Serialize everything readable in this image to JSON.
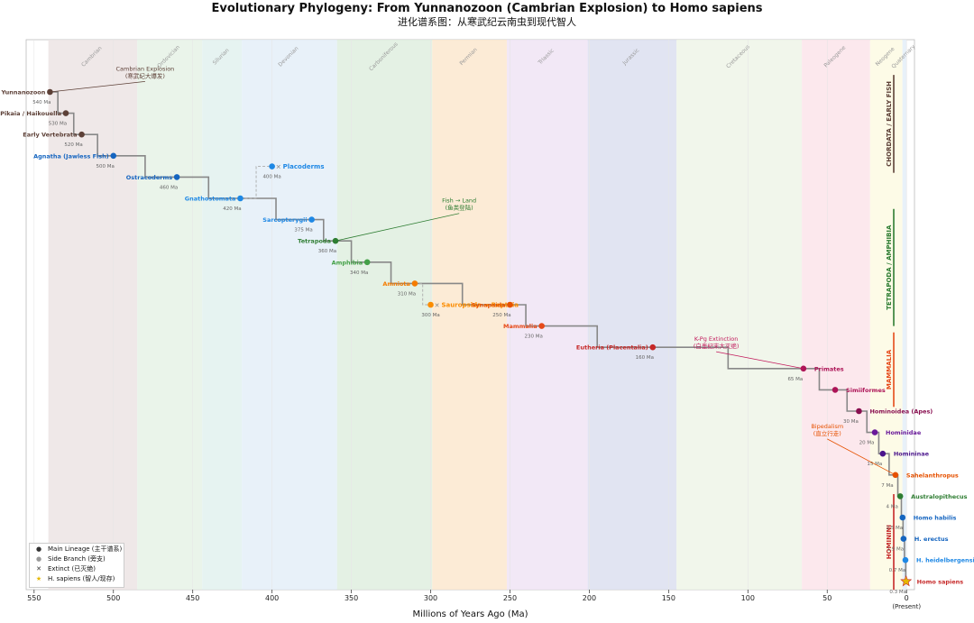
{
  "header": {
    "title": "Evolutionary Phylogeny: From Yunnanozoon (Cambrian Explosion) to Homo sapiens",
    "subtitle": "进化谱系图：从寒武纪云南虫到现代智人"
  },
  "chart_data": {
    "type": "phylogeny-timeline",
    "xlabel": "Millions of Years Ago (Ma)",
    "xlim": [
      555,
      -5
    ],
    "x_ticks": [
      550,
      500,
      450,
      400,
      350,
      300,
      250,
      200,
      150,
      100,
      50,
      0
    ],
    "present_label": "(Present)",
    "periods": [
      {
        "name": "Cambrian",
        "start": 541,
        "end": 485,
        "color": "#ece4e4"
      },
      {
        "name": "Ordovician",
        "start": 485,
        "end": 444,
        "color": "#e6f2e6"
      },
      {
        "name": "Silurian",
        "start": 444,
        "end": 419,
        "color": "#e2f1ef"
      },
      {
        "name": "Devonian",
        "start": 419,
        "end": 359,
        "color": "#e4eef8"
      },
      {
        "name": "Carboniferous",
        "start": 359,
        "end": 299,
        "color": "#dfeedf"
      },
      {
        "name": "Permian",
        "start": 299,
        "end": 252,
        "color": "#fbe8cf"
      },
      {
        "name": "Triassic",
        "start": 252,
        "end": 201,
        "color": "#f0e4f4"
      },
      {
        "name": "Jurassic",
        "start": 201,
        "end": 145,
        "color": "#dcdff0"
      },
      {
        "name": "Cretaceous",
        "start": 145,
        "end": 66,
        "color": "#eef5e8"
      },
      {
        "name": "Paleogene",
        "start": 66,
        "end": 23,
        "color": "#fbe4ea"
      },
      {
        "name": "Neogene",
        "start": 23,
        "end": 2.6,
        "color": "#fdfae3"
      },
      {
        "name": "Quaternary",
        "start": 2.6,
        "end": 0,
        "color": "#e4eef8"
      }
    ],
    "main_lineage": [
      {
        "name": "Yunnanozoon",
        "ma": 540,
        "ma_label": "540 Ma",
        "color": "#5d4037",
        "label_side": "left"
      },
      {
        "name": "Pikaia / Haikouella",
        "ma": 530,
        "ma_label": "530 Ma",
        "color": "#5d4037",
        "label_side": "left"
      },
      {
        "name": "Early Vertebrata",
        "ma": 520,
        "ma_label": "520 Ma",
        "color": "#5d4037",
        "label_side": "left"
      },
      {
        "name": "Agnatha (Jawless Fish)",
        "ma": 500,
        "ma_label": "500 Ma",
        "color": "#1565c0",
        "label_side": "left"
      },
      {
        "name": "Ostracoderms",
        "ma": 460,
        "ma_label": "460 Ma",
        "color": "#1565c0",
        "label_side": "left"
      },
      {
        "name": "Gnathostomata",
        "ma": 420,
        "ma_label": "420 Ma",
        "color": "#1e88e5",
        "label_side": "left"
      },
      {
        "name": "Sarcopterygii",
        "ma": 375,
        "ma_label": "375 Ma",
        "color": "#1e88e5",
        "label_side": "left"
      },
      {
        "name": "Tetrapoda",
        "ma": 360,
        "ma_label": "360 Ma",
        "color": "#2e7d32",
        "label_side": "left"
      },
      {
        "name": "Amphibia",
        "ma": 340,
        "ma_label": "340 Ma",
        "color": "#43a047",
        "label_side": "left"
      },
      {
        "name": "Amniota",
        "ma": 310,
        "ma_label": "310 Ma",
        "color": "#f57c00",
        "label_side": "left"
      },
      {
        "name": "Synapsida",
        "ma": 250,
        "ma_label": "250 Ma",
        "color": "#e65100",
        "label_side": "left"
      },
      {
        "name": "Mammalia",
        "ma": 230,
        "ma_label": "230 Ma",
        "color": "#e64a19",
        "label_side": "left"
      },
      {
        "name": "Eutheria (Placentalia)",
        "ma": 160,
        "ma_label": "160 Ma",
        "color": "#c62828",
        "label_side": "left"
      },
      {
        "name": "Primates",
        "ma": 65,
        "ma_label": "65 Ma",
        "color": "#ad1457",
        "label_side": "right"
      },
      {
        "name": "Simiiformes",
        "ma": 45,
        "ma_label": "",
        "color": "#ad1457",
        "label_side": "right"
      },
      {
        "name": "Hominoidea (Apes)",
        "ma": 30,
        "ma_label": "30 Ma",
        "color": "#880e4f",
        "label_side": "right"
      },
      {
        "name": "Hominidae",
        "ma": 20,
        "ma_label": "20 Ma",
        "color": "#6a1b9a",
        "label_side": "right"
      },
      {
        "name": "Homininae",
        "ma": 15,
        "ma_label": "15 Ma",
        "color": "#4a148c",
        "label_side": "right"
      },
      {
        "name": "Sahelanthropus",
        "ma": 7,
        "ma_label": "7 Ma",
        "color": "#e65100",
        "label_side": "right"
      },
      {
        "name": "Australopithecus",
        "ma": 4,
        "ma_label": "4 Ma",
        "color": "#2e7d32",
        "label_side": "right"
      },
      {
        "name": "Homo habilis",
        "ma": 2.5,
        "ma_label": "2.5 Ma",
        "color": "#1565c0",
        "label_side": "right"
      },
      {
        "name": "H. erectus",
        "ma": 1.9,
        "ma_label": "1.9 Ma",
        "color": "#1565c0",
        "label_side": "right"
      },
      {
        "name": "H. heidelbergensis",
        "ma": 0.7,
        "ma_label": "0.7 Ma",
        "color": "#1e88e5",
        "label_side": "right"
      },
      {
        "name": "Homo sapiens",
        "ma": 0.3,
        "ma_label": "0.3 Ma",
        "color": "#c62828",
        "label_side": "right",
        "star": true
      }
    ],
    "side_branches": [
      {
        "name": "Placoderms",
        "ma": 400,
        "ma_label": "400 Ma",
        "color": "#1e88e5",
        "from_index": 5
      },
      {
        "name": "Sauropsida → Reptilia",
        "ma": 300,
        "ma_label": "300 Ma",
        "color": "#fb8c00",
        "from_index": 9
      }
    ],
    "annotations": [
      {
        "text": [
          "Cambrian Explosion",
          "(寒武纪大爆发)"
        ],
        "color": "#5d4037",
        "ma": 480,
        "row": -1,
        "target_index": 0
      },
      {
        "text": [
          "Fish → Land",
          "(鱼类登陆)"
        ],
        "color": "#2e7d32",
        "ma": 282,
        "row": 5.2,
        "target_index": 7
      },
      {
        "text": [
          "K-Pg Extinction",
          "(白垩纪末大灭绝)"
        ],
        "color": "#c2185b",
        "ma": 120,
        "row": 11.7,
        "target_index": 13
      },
      {
        "text": [
          "Bipedalism",
          "(直立行走)"
        ],
        "color": "#e65100",
        "ma": 50,
        "row": 15.8,
        "target_index": 18
      }
    ],
    "groups": [
      {
        "label": "CHORDATA / EARLY FISH",
        "color": "#5d4037",
        "row_start": -0.8,
        "row_end": 3.8
      },
      {
        "label": "TETRAPODA / AMPHIBIA",
        "color": "#2e7d32",
        "row_start": 5.5,
        "row_end": 11.0
      },
      {
        "label": "MAMMALIA",
        "color": "#e64a19",
        "row_start": 11.3,
        "row_end": 14.8
      },
      {
        "label": "HOMININI",
        "color": "#c62828",
        "row_start": 18.9,
        "row_end": 23.4
      }
    ],
    "legend": [
      {
        "symbol": "dot-dark",
        "label": "Main Lineage (主干谱系)"
      },
      {
        "symbol": "dot-gray",
        "label": "Side Branch (旁支)"
      },
      {
        "symbol": "cross",
        "label": "Extinct (已灭绝)"
      },
      {
        "symbol": "star",
        "label": "H. sapiens (智人/现存)"
      }
    ]
  }
}
